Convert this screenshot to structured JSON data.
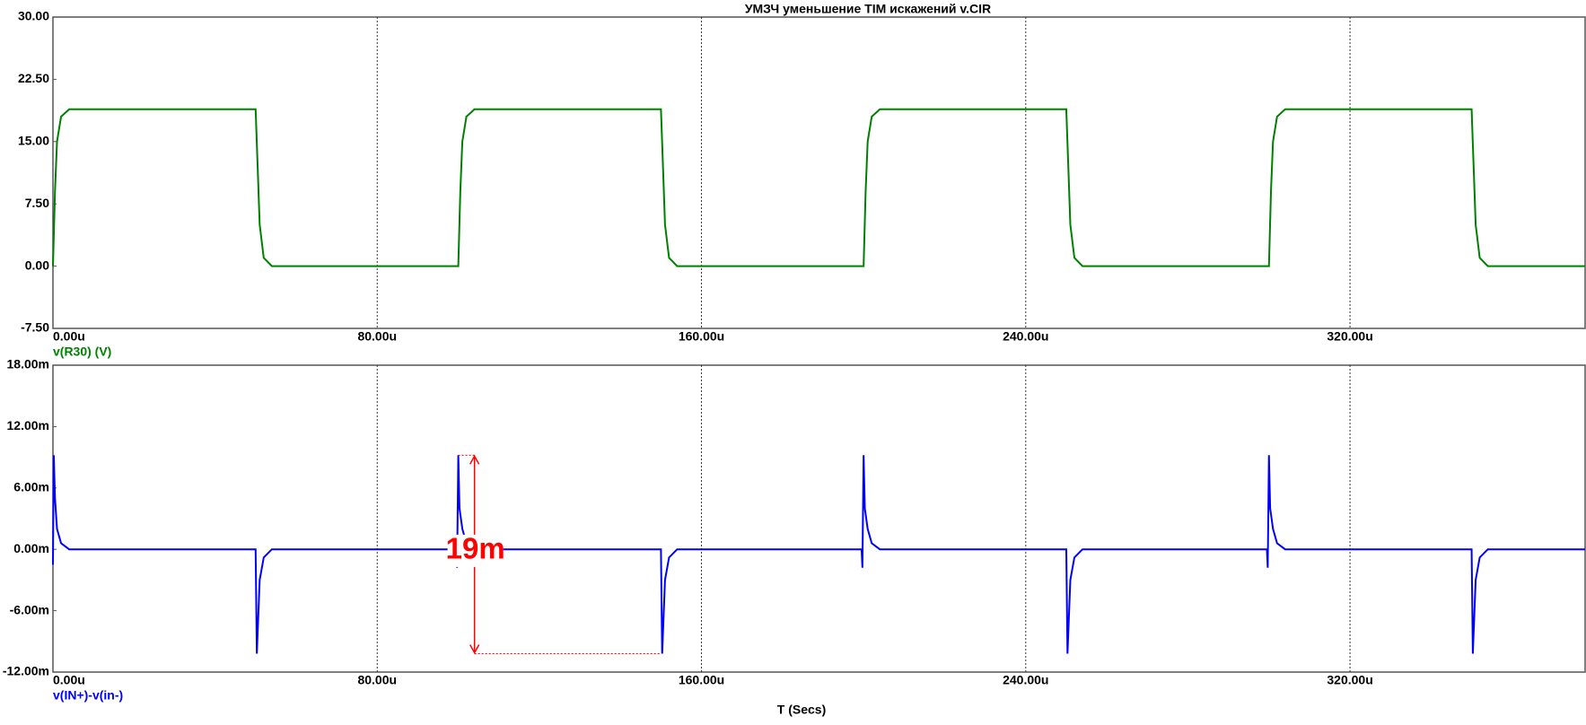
{
  "chart_data": [
    {
      "type": "line",
      "title": "УМЗЧ уменьшение TIM искажений v.CIR",
      "x": [
        0,
        0.5,
        1,
        2,
        4,
        50,
        50.5,
        51,
        52,
        54,
        100,
        100.5,
        101,
        102,
        104,
        150,
        150.5,
        151,
        152,
        154,
        200,
        200.5,
        201,
        202,
        204,
        250,
        250.5,
        251,
        252,
        254,
        300,
        300.5,
        301,
        302,
        304,
        350,
        350.5,
        351,
        352,
        354,
        378
      ],
      "series": [
        {
          "name": "v(R30) (V)",
          "color": "#008000",
          "values": [
            0,
            9,
            15,
            18,
            18.9,
            18.9,
            12,
            5,
            1,
            0,
            0,
            9,
            15,
            18,
            18.9,
            18.9,
            12,
            5,
            1,
            0,
            0,
            9,
            15,
            18,
            18.9,
            18.9,
            12,
            5,
            1,
            0,
            0,
            9,
            15,
            18,
            18.9,
            18.9,
            12,
            5,
            1,
            0,
            0
          ]
        }
      ],
      "xlim": [
        0,
        378
      ],
      "xticks": [
        {
          "value": 0,
          "label": "0.00u"
        },
        {
          "value": 80,
          "label": "80.00u"
        },
        {
          "value": 160,
          "label": "160.00u"
        },
        {
          "value": 240,
          "label": "240.00u"
        },
        {
          "value": 320,
          "label": "320.00u"
        }
      ],
      "ylim": [
        -7.5,
        30
      ],
      "yticks": [
        {
          "value": 30,
          "label": "30.00"
        },
        {
          "value": 22.5,
          "label": "22.50"
        },
        {
          "value": 15,
          "label": "15.00"
        },
        {
          "value": 7.5,
          "label": "7.50"
        },
        {
          "value": 0,
          "label": "0.00"
        },
        {
          "value": -7.5,
          "label": "-7.50"
        }
      ],
      "grid": true
    },
    {
      "type": "line",
      "x_label": "T (Secs)",
      "x": [
        0,
        0.2,
        0.5,
        1,
        2,
        4,
        50,
        50.3,
        51,
        52,
        54,
        99.5,
        99.7,
        100,
        100.3,
        101,
        102,
        104,
        150,
        150.3,
        151,
        152,
        154,
        199.5,
        199.7,
        200,
        200.3,
        201,
        202,
        204,
        250,
        250.3,
        251,
        252,
        254,
        299.5,
        299.7,
        300,
        300.3,
        301,
        302,
        304,
        350,
        350.3,
        351,
        352,
        354,
        378
      ],
      "series": [
        {
          "name": "v(IN+)-v(in-)",
          "color": "#0000ff",
          "values": [
            -1.5,
            9.2,
            5,
            2,
            0.6,
            0,
            0,
            -10.2,
            -3,
            -0.8,
            0,
            0,
            -1.8,
            9.2,
            4,
            2,
            0.6,
            0,
            0,
            -10.2,
            -3,
            -0.8,
            0,
            0,
            -1.8,
            9.2,
            4,
            2,
            0.6,
            0,
            0,
            -10.2,
            -3,
            -0.8,
            0,
            0,
            -1.8,
            9.2,
            4,
            2,
            0.6,
            0,
            0,
            -10.2,
            -3,
            -0.8,
            0,
            0
          ]
        }
      ],
      "xlim": [
        0,
        378
      ],
      "xticks": [
        {
          "value": 0,
          "label": "0.00u"
        },
        {
          "value": 80,
          "label": "80.00u"
        },
        {
          "value": 160,
          "label": "160.00u"
        },
        {
          "value": 240,
          "label": "240.00u"
        },
        {
          "value": 320,
          "label": "320.00u"
        }
      ],
      "ylim": [
        -12,
        18
      ],
      "yticks": [
        {
          "value": 18,
          "label": "18.00m"
        },
        {
          "value": 12,
          "label": "12.00m"
        },
        {
          "value": 6,
          "label": "6.00m"
        },
        {
          "value": 0,
          "label": "0.00m"
        },
        {
          "value": -6,
          "label": "-6.00m"
        },
        {
          "value": -12,
          "label": "-12.00m"
        }
      ],
      "grid": true,
      "annotation": {
        "text": "19m",
        "x": 104,
        "y_from": 9.2,
        "y_to": -10.2,
        "x_from": 100,
        "x_to": 150,
        "color": "#ff0000"
      }
    }
  ]
}
